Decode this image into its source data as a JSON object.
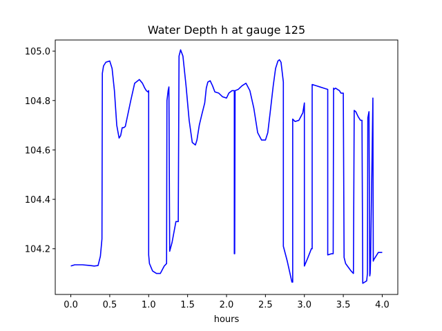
{
  "chart_data": {
    "type": "line",
    "title": "Water Depth h at gauge 125",
    "xlabel": "hours",
    "ylabel": "",
    "xlim": [
      -0.2,
      4.2
    ],
    "ylim": [
      104.015,
      105.045
    ],
    "x_ticks": [
      0.0,
      0.5,
      1.0,
      1.5,
      2.0,
      2.5,
      3.0,
      3.5,
      4.0
    ],
    "x_tick_labels": [
      "0.0",
      "0.5",
      "1.0",
      "1.5",
      "2.0",
      "2.5",
      "3.0",
      "3.5",
      "4.0"
    ],
    "y_ticks": [
      104.2,
      104.4,
      104.6,
      104.8,
      105.0
    ],
    "y_tick_labels": [
      "104.2",
      "104.4",
      "104.6",
      "104.8",
      "105.0"
    ],
    "grid": false,
    "line_color": "#0000ff",
    "series": [
      {
        "x": [
          0.0,
          0.05,
          0.15,
          0.25,
          0.3,
          0.35,
          0.38,
          0.4,
          0.405,
          0.42,
          0.45,
          0.5,
          0.53,
          0.56,
          0.59,
          0.62,
          0.64,
          0.66,
          0.68,
          0.7,
          0.72,
          0.77,
          0.82,
          0.88,
          0.92,
          0.95,
          0.97,
          0.99,
          1.0,
          1.0,
          1.01,
          1.05,
          1.1,
          1.15,
          1.2,
          1.23,
          1.235,
          1.25,
          1.26,
          1.27,
          1.3,
          1.35,
          1.38,
          1.39,
          1.41,
          1.44,
          1.48,
          1.52,
          1.56,
          1.6,
          1.62,
          1.65,
          1.68,
          1.7,
          1.72,
          1.74,
          1.76,
          1.79,
          1.82,
          1.85,
          1.9,
          1.95,
          2.0,
          2.03,
          2.07,
          2.1,
          2.1,
          2.105,
          2.11,
          2.15,
          2.2,
          2.25,
          2.3,
          2.35,
          2.4,
          2.45,
          2.5,
          2.53,
          2.56,
          2.6,
          2.63,
          2.66,
          2.68,
          2.7,
          2.73,
          2.73,
          2.78,
          2.84,
          2.85,
          2.85,
          2.88,
          2.93,
          2.98,
          3.0,
          3.0,
          3.04,
          3.09,
          3.1,
          3.1,
          3.15,
          3.2,
          3.25,
          3.3,
          3.3,
          3.35,
          3.36,
          3.37,
          3.375,
          3.38,
          3.4,
          3.45,
          3.47,
          3.5,
          3.51,
          3.53,
          3.6,
          3.63,
          3.64,
          3.66,
          3.69,
          3.72,
          3.74,
          3.75,
          3.8,
          3.81,
          3.815,
          3.83,
          3.84,
          3.845,
          3.85,
          3.88,
          3.885,
          3.89,
          3.9,
          3.95,
          4.0
        ],
        "y": [
          104.13,
          104.135,
          104.135,
          104.132,
          104.13,
          104.132,
          104.17,
          104.24,
          104.91,
          104.94,
          104.955,
          104.96,
          104.93,
          104.84,
          104.7,
          104.648,
          104.658,
          104.69,
          104.69,
          104.695,
          104.725,
          104.8,
          104.87,
          104.885,
          104.87,
          104.85,
          104.84,
          104.835,
          104.84,
          104.175,
          104.14,
          104.11,
          104.1,
          104.1,
          104.13,
          104.14,
          104.8,
          104.84,
          104.855,
          104.19,
          104.225,
          104.31,
          104.31,
          104.98,
          105.005,
          104.98,
          104.86,
          104.72,
          104.63,
          104.62,
          104.64,
          104.7,
          104.74,
          104.765,
          104.79,
          104.85,
          104.875,
          104.88,
          104.86,
          104.835,
          104.83,
          104.815,
          104.81,
          104.83,
          104.84,
          104.84,
          104.18,
          104.18,
          104.84,
          104.845,
          104.86,
          104.87,
          104.84,
          104.77,
          104.67,
          104.64,
          104.64,
          104.67,
          104.75,
          104.86,
          104.93,
          104.96,
          104.965,
          104.955,
          104.875,
          104.21,
          104.15,
          104.065,
          104.065,
          104.725,
          104.715,
          104.72,
          104.75,
          104.79,
          104.13,
          104.16,
          104.2,
          104.2,
          104.865,
          104.86,
          104.855,
          104.85,
          104.845,
          104.175,
          104.18,
          104.18,
          104.18,
          104.85,
          104.845,
          104.85,
          104.84,
          104.83,
          104.83,
          104.165,
          104.14,
          104.11,
          104.1,
          104.76,
          104.755,
          104.735,
          104.72,
          104.72,
          104.06,
          104.07,
          104.1,
          104.73,
          104.755,
          104.09,
          104.1,
          104.15,
          104.81,
          104.15,
          104.155,
          104.16,
          104.185,
          104.185
        ]
      }
    ]
  }
}
